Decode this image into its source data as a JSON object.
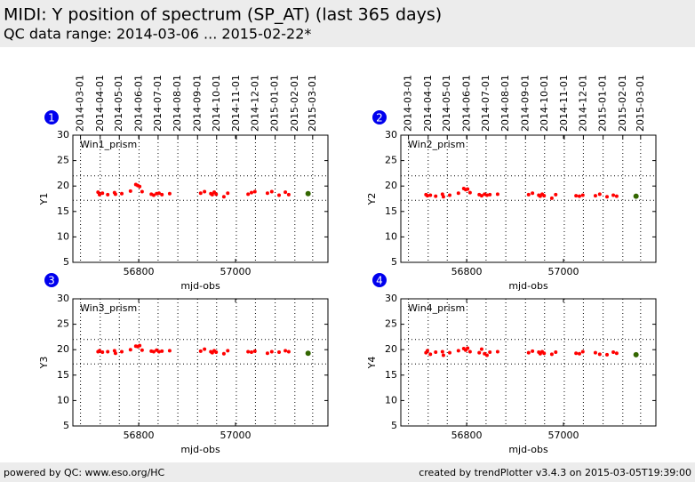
{
  "header": {
    "title": "MIDI: Y position of spectrum (SP_AT) (last 365 days)",
    "subtitle": "QC data range: 2014-03-06 ... 2015-02-22*"
  },
  "footer": {
    "left": "powered by QC: www.eso.org/HC",
    "right": "created by trendPlotter v3.4.3 on 2015-03-05T19:39:00"
  },
  "chart_data": [
    {
      "type": "scatter",
      "badge": "1",
      "panel_label": "Win1_prism",
      "ylabel": "Y1",
      "xlabel": "mjd-obs",
      "xlim": [
        56664,
        57191
      ],
      "xticks": [
        56800,
        57000
      ],
      "ylim": [
        5,
        30
      ],
      "yticks": [
        5,
        10,
        15,
        20,
        25,
        30
      ],
      "x2lim": [
        "2014-02-17",
        "2015-03-25"
      ],
      "x2ticks": [
        "2014-03-01",
        "2014-04-01",
        "2014-05-01",
        "2014-06-01",
        "2014-07-01",
        "2014-08-01",
        "2014-09-01",
        "2014-10-01",
        "2014-11-01",
        "2014-12-01",
        "2015-01-01",
        "2015-02-01",
        "2015-03-01"
      ],
      "grid": true,
      "hlines": [
        22,
        17.2
      ],
      "series": [
        {
          "color": "#ff0000",
          "x": [
            56716,
            56719,
            56725,
            56736,
            56750,
            56752,
            56765,
            56783,
            56794,
            56798,
            56802,
            56807,
            56826,
            56831,
            56837,
            56842,
            56848,
            56864,
            56928,
            56936,
            56949,
            56952,
            56956,
            56960,
            56976,
            56984,
            57026,
            57033,
            57040,
            57066,
            57075,
            57090,
            57103,
            57110
          ],
          "values": [
            18.8,
            18.3,
            18.6,
            18.3,
            18.7,
            18.4,
            18.5,
            19.0,
            20.3,
            20.1,
            19.9,
            18.9,
            18.4,
            18.2,
            18.5,
            18.6,
            18.3,
            18.5,
            18.6,
            18.9,
            18.5,
            18.3,
            18.8,
            18.4,
            17.9,
            18.6,
            18.4,
            18.7,
            18.9,
            18.6,
            18.9,
            18.2,
            18.8,
            18.3
          ]
        },
        {
          "color": "#336600",
          "x": [
            57150
          ],
          "values": [
            18.5
          ]
        }
      ]
    },
    {
      "type": "scatter",
      "badge": "2",
      "panel_label": "Win2_prism",
      "ylabel": "Y2",
      "xlabel": "mjd-obs",
      "xlim": [
        56664,
        57191
      ],
      "xticks": [
        56800,
        57000
      ],
      "ylim": [
        5,
        30
      ],
      "yticks": [
        5,
        10,
        15,
        20,
        25,
        30
      ],
      "x2lim": [
        "2014-02-17",
        "2015-03-25"
      ],
      "x2ticks": [
        "2014-03-01",
        "2014-04-01",
        "2014-05-01",
        "2014-06-01",
        "2014-07-01",
        "2014-08-01",
        "2014-09-01",
        "2014-10-01",
        "2014-11-01",
        "2014-12-01",
        "2015-01-01",
        "2015-02-01",
        "2015-03-01"
      ],
      "grid": true,
      "hlines": [
        22,
        17.2
      ],
      "series": [
        {
          "color": "#ff0000",
          "x": [
            56716,
            56719,
            56725,
            56736,
            56750,
            56752,
            56765,
            56783,
            56794,
            56798,
            56802,
            56807,
            56826,
            56831,
            56837,
            56842,
            56848,
            56864,
            56928,
            56936,
            56949,
            56952,
            56956,
            56960,
            56976,
            56984,
            57026,
            57033,
            57040,
            57066,
            57075,
            57090,
            57103,
            57110
          ],
          "values": [
            18.3,
            18.1,
            18.2,
            18.0,
            18.4,
            17.9,
            18.2,
            18.6,
            19.5,
            19.3,
            19.4,
            18.7,
            18.3,
            18.1,
            18.4,
            18.2,
            18.3,
            18.4,
            18.3,
            18.6,
            18.2,
            18.0,
            18.4,
            18.1,
            17.6,
            18.3,
            18.1,
            18.0,
            18.2,
            18.1,
            18.4,
            17.9,
            18.2,
            18.0
          ]
        },
        {
          "color": "#336600",
          "x": [
            57150
          ],
          "values": [
            18.0
          ]
        }
      ]
    },
    {
      "type": "scatter",
      "badge": "3",
      "panel_label": "Win3_prism",
      "ylabel": "Y3",
      "xlabel": "mjd-obs",
      "xlim": [
        56664,
        57191
      ],
      "xticks": [
        56800,
        57000
      ],
      "ylim": [
        5,
        30
      ],
      "yticks": [
        5,
        10,
        15,
        20,
        25,
        30
      ],
      "grid": true,
      "hlines": [
        22,
        17.2
      ],
      "series": [
        {
          "color": "#ff0000",
          "x": [
            56716,
            56719,
            56725,
            56736,
            56750,
            56752,
            56765,
            56783,
            56794,
            56798,
            56802,
            56807,
            56826,
            56831,
            56837,
            56842,
            56848,
            56864,
            56928,
            56936,
            56949,
            56952,
            56956,
            56960,
            56976,
            56984,
            57026,
            57033,
            57040,
            57066,
            57075,
            57090,
            57103,
            57110
          ],
          "values": [
            19.6,
            19.8,
            19.5,
            19.6,
            19.8,
            19.3,
            19.6,
            20.0,
            20.7,
            20.6,
            20.8,
            19.9,
            19.7,
            19.6,
            19.9,
            19.6,
            19.7,
            19.8,
            19.7,
            20.1,
            19.6,
            19.4,
            19.8,
            19.5,
            19.2,
            19.8,
            19.6,
            19.5,
            19.7,
            19.3,
            19.6,
            19.5,
            19.8,
            19.6
          ]
        },
        {
          "color": "#336600",
          "x": [
            57150
          ],
          "values": [
            19.3
          ]
        }
      ]
    },
    {
      "type": "scatter",
      "badge": "4",
      "panel_label": "Win4_prism",
      "ylabel": "Y4",
      "xlabel": "mjd-obs",
      "xlim": [
        56664,
        57191
      ],
      "xticks": [
        56800,
        57000
      ],
      "ylim": [
        5,
        30
      ],
      "yticks": [
        5,
        10,
        15,
        20,
        25,
        30
      ],
      "grid": true,
      "hlines": [
        22,
        17.2
      ],
      "series": [
        {
          "color": "#ff0000",
          "x": [
            56716,
            56719,
            56725,
            56736,
            56750,
            56752,
            56765,
            56783,
            56794,
            56798,
            56802,
            56807,
            56826,
            56831,
            56837,
            56842,
            56848,
            56864,
            56928,
            56936,
            56949,
            56952,
            56956,
            56960,
            56976,
            56984,
            57026,
            57033,
            57040,
            57066,
            57075,
            57090,
            57103,
            57110
          ],
          "values": [
            19.4,
            19.8,
            19.1,
            19.5,
            19.6,
            18.9,
            19.4,
            19.8,
            20.2,
            19.9,
            20.3,
            19.6,
            19.4,
            20.1,
            19.2,
            18.9,
            19.5,
            19.6,
            19.4,
            19.7,
            19.5,
            19.2,
            19.6,
            19.3,
            19.1,
            19.5,
            19.3,
            19.2,
            19.6,
            19.4,
            19.1,
            19.0,
            19.5,
            19.3
          ]
        },
        {
          "color": "#336600",
          "x": [
            57150
          ],
          "values": [
            19.0
          ]
        }
      ]
    }
  ]
}
